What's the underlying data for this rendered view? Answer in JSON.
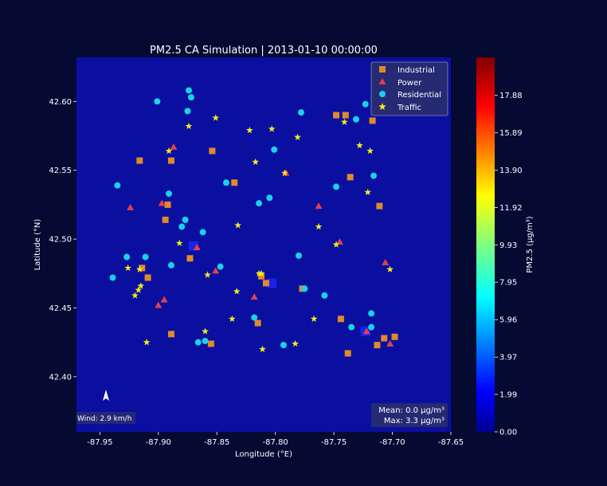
{
  "chart_data": {
    "type": "scatter",
    "title": "PM2.5 CA Simulation | 2013-01-10 00:00:00",
    "xlabel": "Longitude (°E)",
    "ylabel": "Latitude (°N)",
    "xlim": [
      -87.97,
      -87.65
    ],
    "ylim": [
      42.36,
      42.632
    ],
    "x_ticks": [
      -87.95,
      -87.9,
      -87.85,
      -87.8,
      -87.75,
      -87.7,
      -87.65
    ],
    "x_tick_labels": [
      "-87.95",
      "-87.90",
      "-87.85",
      "-87.80",
      "-87.75",
      "-87.70",
      "-87.65"
    ],
    "y_ticks": [
      42.4,
      42.45,
      42.5,
      42.55,
      42.6
    ],
    "y_tick_labels": [
      "42.40",
      "42.45",
      "42.50",
      "42.55",
      "42.60"
    ],
    "grid": false,
    "legend_position": "top-right",
    "background_value": 0.0,
    "series": [
      {
        "name": "Industrial",
        "marker": "square",
        "color": "#e08a28",
        "points": [
          [
            -87.916,
            42.557
          ],
          [
            -87.889,
            42.557
          ],
          [
            -87.854,
            42.564
          ],
          [
            -87.835,
            42.541
          ],
          [
            -87.892,
            42.525
          ],
          [
            -87.894,
            42.514
          ],
          [
            -87.873,
            42.486
          ],
          [
            -87.914,
            42.479
          ],
          [
            -87.909,
            42.472
          ],
          [
            -87.812,
            42.473
          ],
          [
            -87.808,
            42.468
          ],
          [
            -87.777,
            42.464
          ],
          [
            -87.748,
            42.59
          ],
          [
            -87.74,
            42.59
          ],
          [
            -87.717,
            42.586
          ],
          [
            -87.736,
            42.545
          ],
          [
            -87.711,
            42.524
          ],
          [
            -87.815,
            42.439
          ],
          [
            -87.889,
            42.431
          ],
          [
            -87.855,
            42.424
          ],
          [
            -87.744,
            42.442
          ],
          [
            -87.707,
            42.428
          ],
          [
            -87.698,
            42.429
          ],
          [
            -87.713,
            42.423
          ],
          [
            -87.738,
            42.417
          ]
        ]
      },
      {
        "name": "Power",
        "marker": "triangle",
        "color": "#e0404e",
        "points": [
          [
            -87.887,
            42.567
          ],
          [
            -87.791,
            42.548
          ],
          [
            -87.763,
            42.524
          ],
          [
            -87.897,
            42.526
          ],
          [
            -87.924,
            42.523
          ],
          [
            -87.745,
            42.498
          ],
          [
            -87.867,
            42.494
          ],
          [
            -87.851,
            42.477
          ],
          [
            -87.706,
            42.483
          ],
          [
            -87.895,
            42.456
          ],
          [
            -87.9,
            42.452
          ],
          [
            -87.818,
            42.458
          ],
          [
            -87.722,
            42.433
          ],
          [
            -87.702,
            42.424
          ]
        ]
      },
      {
        "name": "Residential",
        "marker": "circle",
        "color": "#19d2e8",
        "points": [
          [
            -87.874,
            42.608
          ],
          [
            -87.872,
            42.603
          ],
          [
            -87.901,
            42.6
          ],
          [
            -87.875,
            42.593
          ],
          [
            -87.778,
            42.592
          ],
          [
            -87.731,
            42.587
          ],
          [
            -87.723,
            42.598
          ],
          [
            -87.801,
            42.565
          ],
          [
            -87.935,
            42.539
          ],
          [
            -87.891,
            42.533
          ],
          [
            -87.842,
            42.541
          ],
          [
            -87.805,
            42.53
          ],
          [
            -87.814,
            42.526
          ],
          [
            -87.748,
            42.538
          ],
          [
            -87.716,
            42.546
          ],
          [
            -87.877,
            42.514
          ],
          [
            -87.88,
            42.509
          ],
          [
            -87.862,
            42.505
          ],
          [
            -87.911,
            42.487
          ],
          [
            -87.889,
            42.481
          ],
          [
            -87.847,
            42.48
          ],
          [
            -87.78,
            42.488
          ],
          [
            -87.939,
            42.472
          ],
          [
            -87.775,
            42.464
          ],
          [
            -87.758,
            42.459
          ],
          [
            -87.818,
            42.443
          ],
          [
            -87.718,
            42.446
          ],
          [
            -87.735,
            42.436
          ],
          [
            -87.718,
            42.436
          ],
          [
            -87.866,
            42.425
          ],
          [
            -87.793,
            42.423
          ],
          [
            -87.927,
            42.487
          ],
          [
            -87.86,
            42.426
          ]
        ]
      },
      {
        "name": "Traffic",
        "marker": "star",
        "color": "#f2ea21",
        "points": [
          [
            -87.851,
            42.588
          ],
          [
            -87.874,
            42.582
          ],
          [
            -87.822,
            42.579
          ],
          [
            -87.803,
            42.58
          ],
          [
            -87.781,
            42.574
          ],
          [
            -87.741,
            42.585
          ],
          [
            -87.728,
            42.568
          ],
          [
            -87.719,
            42.564
          ],
          [
            -87.891,
            42.564
          ],
          [
            -87.817,
            42.556
          ],
          [
            -87.792,
            42.548
          ],
          [
            -87.721,
            42.534
          ],
          [
            -87.832,
            42.51
          ],
          [
            -87.763,
            42.509
          ],
          [
            -87.882,
            42.497
          ],
          [
            -87.748,
            42.496
          ],
          [
            -87.916,
            42.478
          ],
          [
            -87.926,
            42.479
          ],
          [
            -87.702,
            42.478
          ],
          [
            -87.812,
            42.475
          ],
          [
            -87.858,
            42.474
          ],
          [
            -87.915,
            42.466
          ],
          [
            -87.917,
            42.463
          ],
          [
            -87.833,
            42.462
          ],
          [
            -87.92,
            42.459
          ],
          [
            -87.837,
            42.442
          ],
          [
            -87.767,
            42.442
          ],
          [
            -87.91,
            42.425
          ],
          [
            -87.811,
            42.42
          ],
          [
            -87.783,
            42.424
          ],
          [
            -87.86,
            42.433
          ],
          [
            -87.814,
            42.475
          ]
        ]
      }
    ],
    "colorbar": {
      "label": "PM2.5 (μg/m³)",
      "vmin": 0.0,
      "vmax": 19.9,
      "tick_values": [
        0.0,
        1.99,
        3.97,
        5.96,
        7.95,
        9.93,
        11.92,
        13.9,
        15.89,
        17.88
      ],
      "tick_labels": [
        "0.00",
        "1.99",
        "3.97",
        "5.96",
        "7.95",
        "9.93",
        "11.92",
        "13.90",
        "15.89",
        "17.88"
      ],
      "colormap": "jet"
    },
    "annotations": {
      "wind": "Wind: 2.9 km/h",
      "mean": "Mean: 0.0 μg/m³",
      "max": "Max: 3.3 μg/m³"
    },
    "hotspots": [
      {
        "x": -87.87,
        "y": 42.495,
        "value": 3.3
      },
      {
        "x": -87.803,
        "y": 42.468,
        "value": 2.6
      },
      {
        "x": -87.723,
        "y": 42.433,
        "value": 3.0
      }
    ]
  }
}
